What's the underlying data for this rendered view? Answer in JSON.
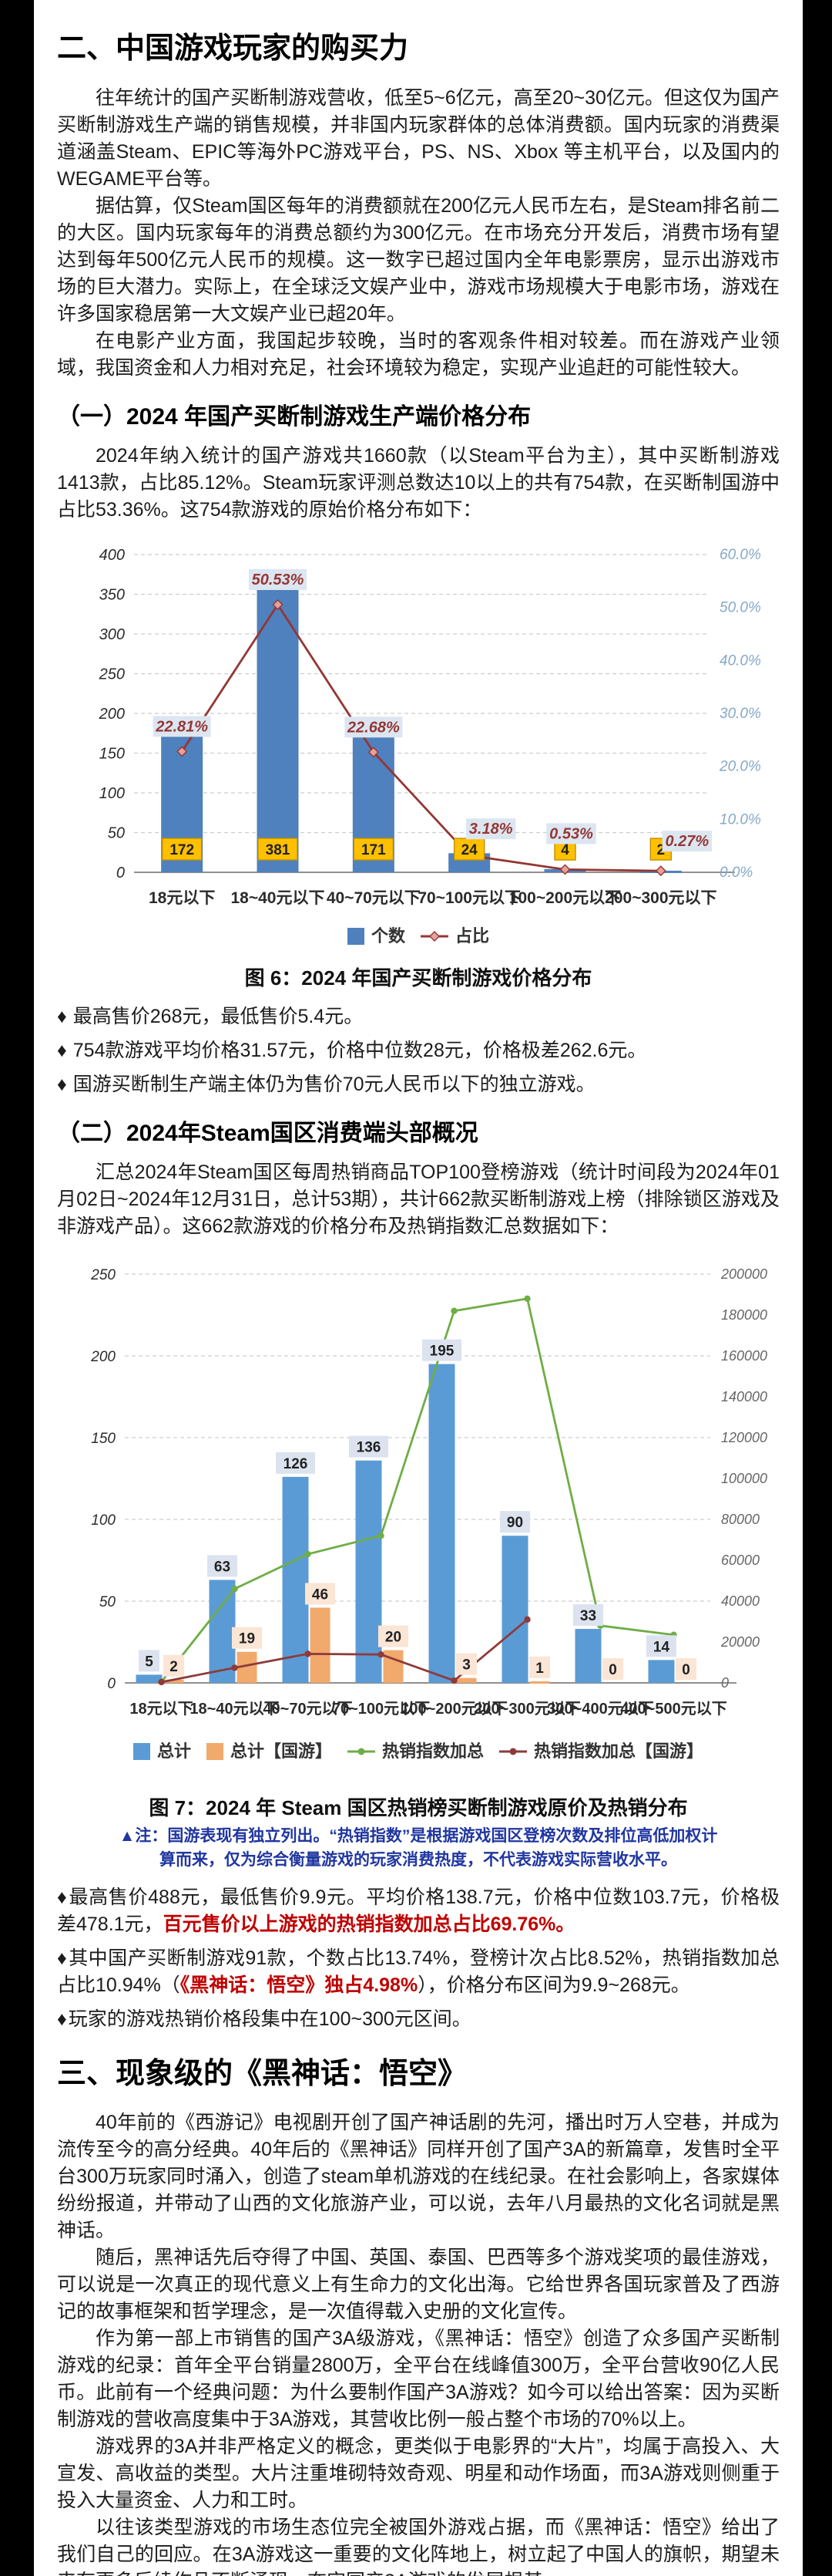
{
  "colors": {
    "accent_red": "#c00000",
    "note_blue": "#2036a0",
    "bar_blue_fig6": "#4e81bd",
    "line_darkred_fig6": "#943634",
    "bar_value_label_yellow": "#ffc000",
    "pct_label_bg": "#dce6f1",
    "bar_blue_fig7": "#5b9bd5",
    "bar_orange_fig7": "#f2a96c",
    "line_green_fig7": "#6fad47",
    "line_darkred_fig7": "#8e3b3b",
    "right_axis_blue_fig6": "#85a8c7"
  },
  "sections": {
    "s2": {
      "title": "二、中国游戏玩家的购买力",
      "paragraphs": [
        "往年统计的国产买断制游戏营收，低至5~6亿元，高至20~30亿元。但这仅为国产买断制游戏生产端的销售规模，并非国内玩家群体的总体消费额。国内玩家的消费渠道涵盖Steam、EPIC等海外PC游戏平台，PS、NS、Xbox 等主机平台，以及国内的WEGAME平台等。",
        "据估算，仅Steam国区每年的消费额就在200亿元人民币左右，是Steam排名前二的大区。国内玩家每年的消费总额约为300亿元。在市场充分开发后，消费市场有望达到每年500亿元人民币的规模。这一数字已超过国内全年电影票房，显示出游戏市场的巨大潜力。实际上，在全球泛文娱产业中，游戏市场规模大于电影市场，游戏在许多国家稳居第一大文娱产业已超20年。",
        "在电影产业方面，我国起步较晚，当时的客观条件相对较差。而在游戏产业领域，我国资金和人力相对充足，社会环境较为稳定，实现产业追赶的可能性较大。"
      ]
    },
    "s2_1": {
      "heading": "（一）2024 年国产买断制游戏生产端价格分布",
      "intro": "2024年纳入统计的国产游戏共1660款（以Steam平台为主），其中买断制游戏1413款，占比85.12%。Steam玩家评测总数达10以上的共有754款，在买断制国游中占比53.36%。这754款游戏的原始价格分布如下：",
      "figure_caption": "图 6：2024 年国产买断制游戏价格分布",
      "bullet_marker": "♦",
      "bullets": [
        "最高售价268元，最低售价5.4元。",
        "754款游戏平均价格31.57元，价格中位数28元，价格极差262.6元。",
        "国游买断制生产端主体仍为售价70元人民币以下的独立游戏。"
      ]
    },
    "s2_2": {
      "heading": "（二）2024年Steam国区消费端头部概况",
      "intro": "汇总2024年Steam国区每周热销商品TOP100登榜游戏（统计时间段为2024年01月02日~2024年12月31日，总计53期），共计662款买断制游戏上榜（排除锁区游戏及非游戏产品）。这662款游戏的价格分布及热销指数汇总数据如下：",
      "figure_caption": "图 7：2024 年 Steam 国区热销榜买断制游戏原价及热销分布",
      "note_line1": "▲注：国游表现有独立列出。“热销指数”是根据游戏国区登榜次数及排位高低加权计",
      "note_line2": "算而来，仅为综合衡量游戏的玩家消费热度，不代表游戏实际营收水平。",
      "bullet_marker": "♦",
      "bullets": [
        {
          "seg1": "最高售价488元，最低售价9.9元。平均价格138.7元，价格中位数103.7元，价格极差478.1元，",
          "seg2_red": "百元售价以上游戏的热销指数加总占比69.76%。",
          "seg3": ""
        },
        {
          "seg1": "其中国产买断制游戏91款，个数占比13.74%，登榜计次占比8.52%，热销指数加总占比10.94%（",
          "seg2_red": "《黑神话：悟空》独占4.98%",
          "seg3": "），价格分布区间为9.9~268元。"
        },
        {
          "seg1": "玩家的游戏热销价格段集中在100~300元区间。",
          "seg2_red": "",
          "seg3": ""
        }
      ]
    },
    "s3": {
      "title": "三、现象级的《黑神话：悟空》",
      "paragraphs": [
        "40年前的《西游记》电视剧开创了国产神话剧的先河，播出时万人空巷，并成为流传至今的高分经典。40年后的《黑神话》同样开创了国产3A的新篇章，发售时全平台300万玩家同时涌入，创造了steam单机游戏的在线纪录。在社会影响上，各家媒体纷纷报道，并带动了山西的文化旅游产业，可以说，去年八月最热的文化名词就是黑神话。",
        "随后，黑神话先后夺得了中国、英国、泰国、巴西等多个游戏奖项的最佳游戏，可以说是一次真正的现代意义上有生命力的文化出海。它给世界各国玩家普及了西游记的故事框架和哲学理念，是一次值得载入史册的文化宣传。",
        "作为第一部上市销售的国产3A级游戏，《黑神话：悟空》创造了众多国产买断制游戏的纪录：首年全平台销量2800万，全平台在线峰值300万，全平台营收90亿人民币。此前有一个经典问题：为什么要制作国产3A游戏？如今可以给出答案：因为买断制游戏的营收高度集中于3A游戏，其营收比例一般占整个市场的70%以上。",
        "游戏界的3A并非严格定义的概念，更类似于电影界的“大片”，均属于高投入、大宣发、高收益的类型。大片注重堆砌特效奇观、明星和动作场面，而3A游戏则侧重于投入大量资金、人力和工时。",
        "以往该类型游戏的市场生态位完全被国外游戏占据，而《黑神话：悟空》给出了我们自己的回应。在3A游戏这一重要的文化阵地上，树立起了中国人的旗帜，期望未来有更多后续作品不断涌现，夯实国产3A游戏的发展根基。"
      ]
    }
  },
  "chart_data": [
    {
      "type": "bar",
      "subtype": "bar-line-combo",
      "title": "图 6：2024 年国产买断制游戏价格分布",
      "categories": [
        "18元以下",
        "18~40元以下",
        "40~70元以下",
        "70~100元以下",
        "100~200元以下",
        "200~300元以下"
      ],
      "bar_series": {
        "name": "个数",
        "values": [
          172,
          381,
          171,
          24,
          4,
          2
        ],
        "color": "#4e81bd"
      },
      "line_series": {
        "name": "占比",
        "values_percent": [
          22.81,
          50.53,
          22.68,
          3.18,
          0.53,
          0.27
        ],
        "color": "#943634",
        "point_labels": [
          "22.81%",
          "50.53%",
          "22.68%",
          "3.18%",
          "0.53%",
          "0.27%"
        ]
      },
      "left_axis": {
        "min": 0,
        "max": 400,
        "step": 50
      },
      "right_axis": {
        "min": 0,
        "max": 60,
        "step": 10,
        "labels": [
          "0.0%",
          "10.0%",
          "20.0%",
          "30.0%",
          "40.0%",
          "50.0%",
          "60.0%"
        ],
        "color": "#85a8c7"
      },
      "legend": [
        "个数",
        "占比"
      ],
      "grid": "dashed-horizontal",
      "legend_position": "bottom"
    },
    {
      "type": "bar",
      "subtype": "grouped-bar-two-lines-combo",
      "title": "图 7：2024 年 Steam 国区热销榜买断制游戏原价及热销分布",
      "categories": [
        "18元以下",
        "18~40元以下",
        "40~70元以下",
        "70~100元以下",
        "100~200元以下",
        "200~300元以下",
        "300~400元以下",
        "400~500元以下"
      ],
      "bar_series": [
        {
          "name": "总计",
          "values": [
            5,
            63,
            126,
            136,
            195,
            90,
            33,
            14
          ],
          "color": "#5b9bd5"
        },
        {
          "name": "总计【国游】",
          "values": [
            2,
            19,
            46,
            20,
            3,
            1,
            0,
            0
          ],
          "color": "#f2a96c"
        }
      ],
      "line_series": [
        {
          "name": "热销指数加总",
          "values": [
            500,
            46000,
            63000,
            72000,
            182000,
            188000,
            28000,
            23500
          ],
          "color": "#6fad47",
          "note": "estimated from gridlines"
        },
        {
          "name": "热销指数加总【国游】",
          "values": [
            400,
            7400,
            14200,
            13900,
            1100,
            31000,
            null,
            null
          ],
          "color": "#8e3b3b",
          "note": "estimated from gridlines; line ends at 200~300"
        }
      ],
      "left_axis": {
        "min": 0,
        "max": 250,
        "step": 50
      },
      "right_axis": {
        "min": 0,
        "max": 200000,
        "step": 20000,
        "labels": [
          "0",
          "20000",
          "40000",
          "60000",
          "80000",
          "100000",
          "120000",
          "140000",
          "160000",
          "180000",
          "200000"
        ],
        "color": "#666666"
      },
      "legend": [
        "总计",
        "总计【国游】",
        "热销指数加总",
        "热销指数加总【国游】"
      ],
      "grid": "dashed-horizontal",
      "legend_position": "bottom"
    }
  ]
}
